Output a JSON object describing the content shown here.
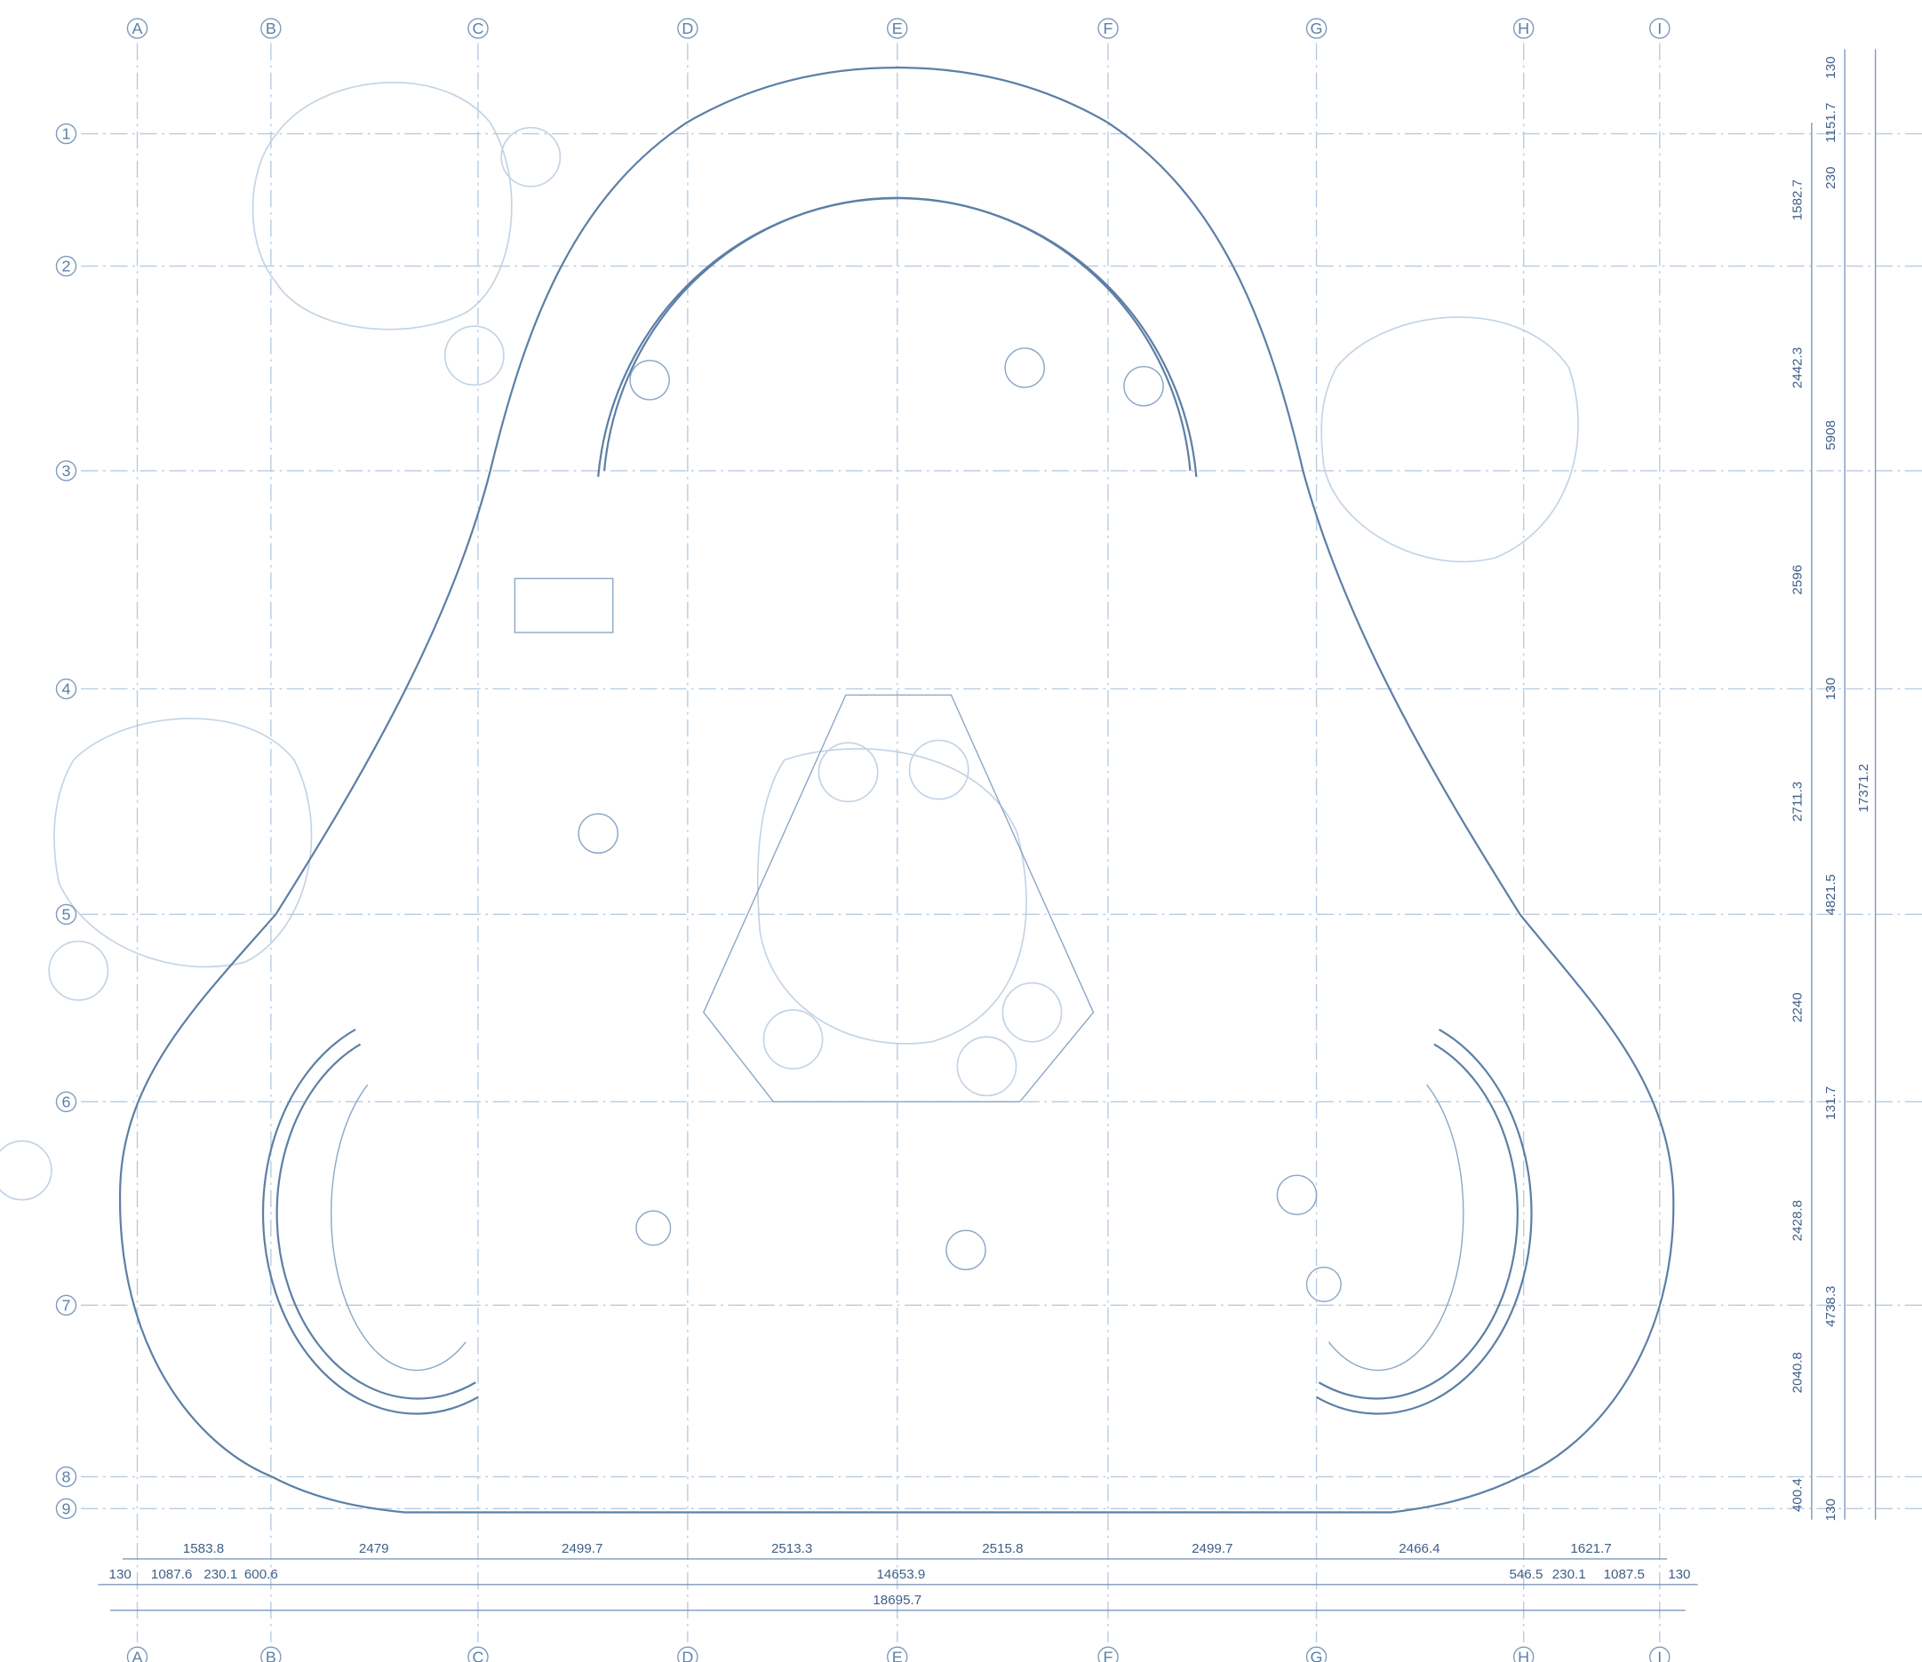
{
  "grid": {
    "columns": [
      "A",
      "B",
      "C",
      "D",
      "E",
      "F",
      "G",
      "H",
      "I"
    ],
    "rows": [
      "1",
      "2",
      "3",
      "4",
      "5",
      "6",
      "7",
      "8",
      "9"
    ]
  },
  "dimensions": {
    "bottom_row1": [
      "1583.8",
      "2479",
      "2499.7",
      "2513.3",
      "2515.8",
      "2499.7",
      "2466.4",
      "1621.7"
    ],
    "bottom_row2": [
      "130",
      "1087.6",
      "230.1",
      "600.6",
      "14653.9",
      "546.5",
      "230.1",
      "1087.5",
      "130"
    ],
    "bottom_total": "18695.7",
    "right_col1": [
      "1582.7",
      "2442.3",
      "2596",
      "2711.3",
      "2240",
      "2428.8",
      "2040.8",
      "400.4"
    ],
    "right_col2": [
      "130",
      "1151.7",
      "230",
      "5908",
      "130",
      "4821.5",
      "131.7",
      "4738.3",
      "130"
    ],
    "right_total": "17371.2"
  }
}
